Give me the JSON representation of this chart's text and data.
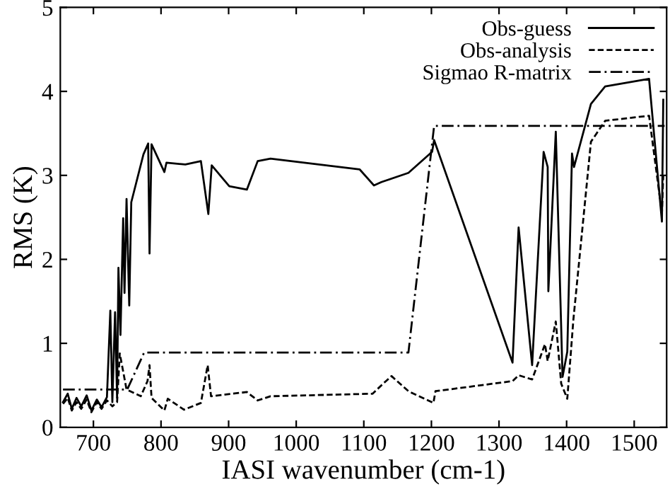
{
  "chart_data": {
    "type": "line",
    "xlabel": "IASI wavenumber (cm-1)",
    "ylabel": "RMS (K)",
    "xlim": [
      651,
      1548
    ],
    "ylim": [
      0,
      5
    ],
    "xticks": [
      700,
      800,
      900,
      1000,
      1100,
      1200,
      1300,
      1400,
      1500
    ],
    "yticks": [
      0,
      1,
      2,
      3,
      4,
      5
    ],
    "grid": false,
    "legend": "top right",
    "series": [
      {
        "name": "Obs-guess",
        "color": "#000000",
        "line_style": "solid",
        "x": [
          655,
          662,
          668,
          675,
          682,
          690,
          697,
          705,
          712,
          720,
          725,
          728,
          732,
          735,
          737,
          740,
          744,
          746,
          749,
          753,
          756,
          774,
          781,
          783,
          786,
          805,
          808,
          836,
          859,
          870,
          875,
          901,
          927,
          943,
          962,
          1094,
          1115,
          1126,
          1166,
          1201,
          1204,
          1320,
          1329,
          1349,
          1366,
          1372,
          1373,
          1384,
          1394,
          1401,
          1408,
          1411,
          1436,
          1457,
          1522,
          1541,
          1543
        ],
        "values": [
          0.3,
          0.4,
          0.22,
          0.35,
          0.25,
          0.38,
          0.2,
          0.33,
          0.24,
          0.36,
          1.39,
          0.3,
          1.37,
          0.35,
          1.9,
          1.1,
          2.49,
          1.6,
          2.72,
          1.45,
          2.68,
          3.25,
          3.38,
          2.07,
          3.37,
          3.04,
          3.15,
          3.13,
          3.17,
          2.54,
          3.12,
          2.87,
          2.83,
          3.17,
          3.2,
          3.07,
          2.88,
          2.92,
          3.03,
          3.28,
          3.42,
          0.77,
          2.38,
          0.74,
          3.28,
          3.1,
          1.62,
          3.52,
          0.6,
          0.9,
          3.26,
          3.1,
          3.85,
          4.06,
          4.15,
          2.45,
          3.9
        ]
      },
      {
        "name": "Obs-analysis",
        "color": "#000000",
        "line_style": "dashed",
        "x": [
          655,
          662,
          668,
          675,
          682,
          690,
          697,
          705,
          712,
          720,
          728,
          735,
          739,
          749,
          770,
          780,
          783,
          786,
          805,
          810,
          834,
          859,
          869,
          874,
          927,
          943,
          962,
          1113,
          1126,
          1141,
          1166,
          1203,
          1206,
          1320,
          1329,
          1349,
          1368,
          1372,
          1384,
          1392,
          1401,
          1410,
          1436,
          1457,
          1522,
          1541,
          1543
        ],
        "values": [
          0.28,
          0.35,
          0.2,
          0.3,
          0.22,
          0.33,
          0.18,
          0.3,
          0.22,
          0.32,
          0.25,
          0.3,
          0.88,
          0.45,
          0.37,
          0.55,
          0.74,
          0.35,
          0.2,
          0.34,
          0.21,
          0.29,
          0.74,
          0.37,
          0.42,
          0.32,
          0.37,
          0.4,
          0.5,
          0.61,
          0.43,
          0.29,
          0.43,
          0.55,
          0.62,
          0.57,
          0.99,
          0.79,
          1.26,
          0.52,
          0.34,
          1.28,
          3.4,
          3.65,
          3.71,
          2.55,
          3.0
        ]
      },
      {
        "name": "Sigmao R-matrix",
        "color": "#000000",
        "line_style": "dashdot",
        "x": [
          655,
          735,
          750,
          775,
          1166,
          1204,
          1545
        ],
        "values": [
          0.45,
          0.45,
          0.45,
          0.89,
          0.89,
          3.59,
          3.59
        ]
      }
    ]
  }
}
